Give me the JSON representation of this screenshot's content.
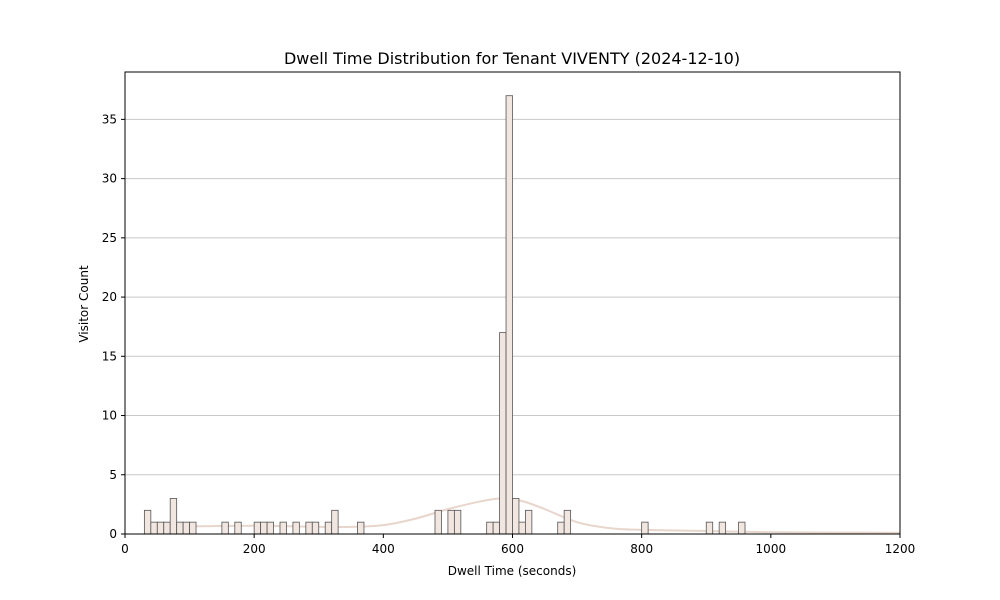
{
  "chart_data": {
    "type": "bar",
    "title": "Dwell Time Distribution for Tenant VIVENTY (2024-12-10)",
    "xlabel": "Dwell Time (seconds)",
    "ylabel": "Visitor Count",
    "xlim": [
      0,
      1200
    ],
    "ylim": [
      0,
      39
    ],
    "xticks": [
      0,
      200,
      400,
      600,
      800,
      1000,
      1200
    ],
    "yticks": [
      0,
      5,
      10,
      15,
      20,
      25,
      30,
      35
    ],
    "grid": "y",
    "bar_fill": "#f2e6e1",
    "bar_edge": "#555555",
    "kde_color": "#e8d5cc",
    "bin_width": 10,
    "bins": [
      {
        "x": 30,
        "count": 2
      },
      {
        "x": 40,
        "count": 1
      },
      {
        "x": 50,
        "count": 1
      },
      {
        "x": 60,
        "count": 1
      },
      {
        "x": 70,
        "count": 3
      },
      {
        "x": 80,
        "count": 1
      },
      {
        "x": 90,
        "count": 1
      },
      {
        "x": 100,
        "count": 1
      },
      {
        "x": 150,
        "count": 1
      },
      {
        "x": 170,
        "count": 1
      },
      {
        "x": 200,
        "count": 1
      },
      {
        "x": 210,
        "count": 1
      },
      {
        "x": 220,
        "count": 1
      },
      {
        "x": 240,
        "count": 1
      },
      {
        "x": 260,
        "count": 1
      },
      {
        "x": 280,
        "count": 1
      },
      {
        "x": 290,
        "count": 1
      },
      {
        "x": 310,
        "count": 1
      },
      {
        "x": 320,
        "count": 2
      },
      {
        "x": 360,
        "count": 1
      },
      {
        "x": 480,
        "count": 2
      },
      {
        "x": 500,
        "count": 2
      },
      {
        "x": 510,
        "count": 2
      },
      {
        "x": 560,
        "count": 1
      },
      {
        "x": 570,
        "count": 1
      },
      {
        "x": 580,
        "count": 17
      },
      {
        "x": 590,
        "count": 37
      },
      {
        "x": 600,
        "count": 3
      },
      {
        "x": 610,
        "count": 1
      },
      {
        "x": 620,
        "count": 2
      },
      {
        "x": 670,
        "count": 1
      },
      {
        "x": 680,
        "count": 2
      },
      {
        "x": 800,
        "count": 1
      },
      {
        "x": 900,
        "count": 1
      },
      {
        "x": 920,
        "count": 1
      },
      {
        "x": 950,
        "count": 1
      }
    ],
    "kde": {
      "x": [
        30,
        100,
        200,
        300,
        350,
        400,
        450,
        500,
        550,
        580,
        600,
        620,
        650,
        700,
        750,
        800,
        900,
        1000,
        1100,
        1200
      ],
      "y": [
        0.7,
        0.65,
        0.7,
        0.6,
        0.6,
        0.75,
        1.3,
        2.1,
        2.75,
        3.0,
        2.95,
        2.7,
        2.1,
        1.0,
        0.5,
        0.35,
        0.25,
        0.15,
        0.12,
        0.1
      ]
    }
  }
}
